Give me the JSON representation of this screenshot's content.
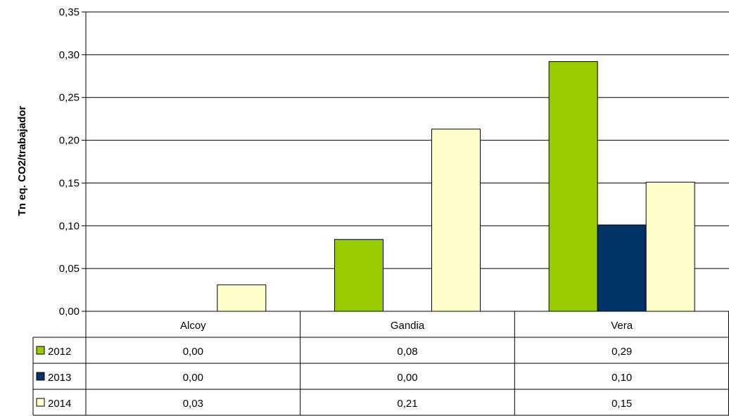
{
  "chart_data": {
    "type": "bar",
    "title": "",
    "xlabel": "",
    "ylabel": "Tn eq. CO2/trabajador",
    "ylim": [
      0,
      0.35
    ],
    "yticks": [
      "0,00",
      "0,05",
      "0,10",
      "0,15",
      "0,20",
      "0,25",
      "0,30",
      "0,35"
    ],
    "grid": true,
    "legend": "data-table-left",
    "categories": [
      "Alcoy",
      "Gandia",
      "Vera"
    ],
    "series": [
      {
        "name": "2012",
        "color": "#99cc00",
        "values": [
          0.0,
          0.084,
          0.292
        ],
        "labels": [
          "0,00",
          "0,08",
          "0,29"
        ]
      },
      {
        "name": "2013",
        "color": "#003366",
        "values": [
          0.0,
          0.0,
          0.101
        ],
        "labels": [
          "0,00",
          "0,00",
          "0,10"
        ]
      },
      {
        "name": "2014",
        "color": "#ffffcc",
        "values": [
          0.031,
          0.213,
          0.151
        ],
        "labels": [
          "0,03",
          "0,21",
          "0,15"
        ]
      }
    ]
  }
}
